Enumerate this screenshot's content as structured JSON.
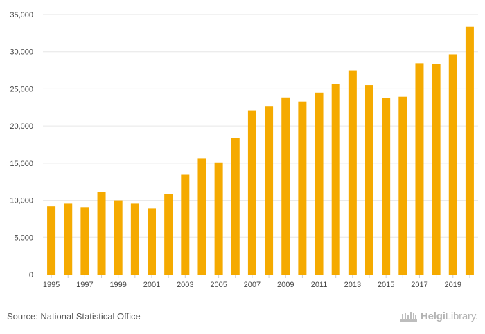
{
  "chart_data": {
    "type": "bar",
    "title": "",
    "xlabel": "",
    "ylabel": "",
    "ylim": [
      0,
      35000
    ],
    "yticks": [
      0,
      5000,
      10000,
      15000,
      20000,
      25000,
      30000,
      35000
    ],
    "ytick_labels": [
      "0",
      "5,000",
      "10,000",
      "15,000",
      "20,000",
      "25,000",
      "30,000",
      "35,000"
    ],
    "categories": [
      "1995",
      "1996",
      "1997",
      "1998",
      "1999",
      "2000",
      "2001",
      "2002",
      "2003",
      "2004",
      "2005",
      "2006",
      "2007",
      "2008",
      "2009",
      "2010",
      "2011",
      "2012",
      "2013",
      "2014",
      "2015",
      "2016",
      "2017",
      "2018",
      "2019",
      "2020"
    ],
    "xtick_labels": [
      "1995",
      "1997",
      "1999",
      "2001",
      "2003",
      "2005",
      "2007",
      "2009",
      "2011",
      "2013",
      "2015",
      "2017",
      "2019"
    ],
    "values": [
      9200,
      9550,
      9000,
      11100,
      10000,
      9550,
      8900,
      10850,
      13450,
      15600,
      15100,
      18400,
      22100,
      22600,
      23850,
      23300,
      24500,
      25650,
      27500,
      25500,
      23800,
      23950,
      28450,
      28350,
      29650,
      33350
    ],
    "bar_color": "#f5aa00",
    "grid": true
  },
  "footer": {
    "source": "Source: National Statistical Office",
    "brand_bold": "Helgi",
    "brand_rest": "Library."
  }
}
